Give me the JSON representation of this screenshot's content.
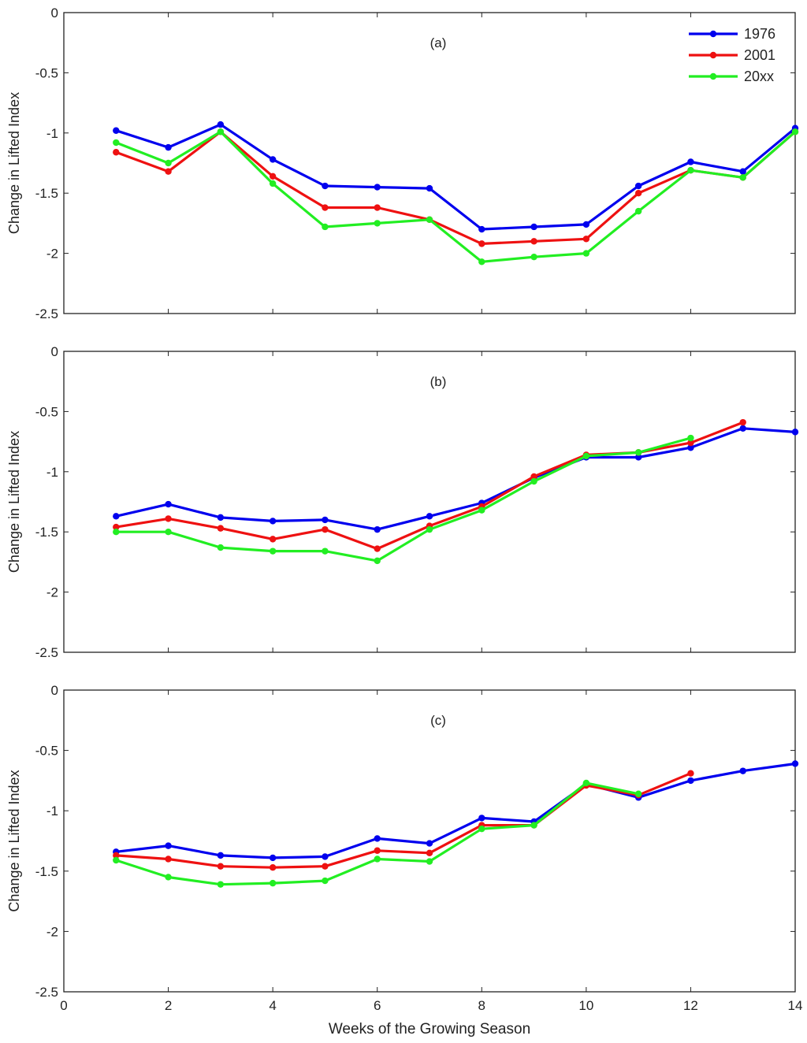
{
  "chart_data": [
    {
      "type": "line",
      "panel_label": "(a)",
      "xlabel": "",
      "ylabel": "Change in Lifted Index",
      "xlim": [
        0,
        14
      ],
      "ylim": [
        -2.5,
        0
      ],
      "xticks": [
        0,
        2,
        4,
        6,
        8,
        10,
        12,
        14
      ],
      "yticks": [
        0,
        -0.5,
        -1,
        -1.5,
        -2,
        -2.5
      ],
      "ytick_labels": [
        "0",
        "-0.5",
        "-1",
        "-1.5",
        "-2",
        "-2.5"
      ],
      "show_xtick_labels": false,
      "legend": {
        "position": "top-right",
        "entries": [
          "1976",
          "2001",
          "20xx"
        ]
      },
      "series": [
        {
          "name": "1976",
          "color": "#0000ee",
          "x": [
            1,
            2,
            3,
            4,
            5,
            6,
            7,
            8,
            9,
            10,
            11,
            12,
            13,
            14
          ],
          "y": [
            -0.98,
            -1.12,
            -0.93,
            -1.22,
            -1.44,
            -1.45,
            -1.46,
            -1.8,
            -1.78,
            -1.76,
            -1.44,
            -1.24,
            -1.32,
            -0.96
          ]
        },
        {
          "name": "2001",
          "color": "#ee1111",
          "x": [
            1,
            2,
            3,
            4,
            5,
            6,
            7,
            8,
            9,
            10,
            11,
            12,
            13,
            14
          ],
          "y": [
            -1.16,
            -1.32,
            -0.99,
            -1.36,
            -1.62,
            -1.62,
            -1.72,
            -1.92,
            -1.9,
            -1.88,
            -1.5,
            -1.31,
            -1.37,
            -0.99
          ]
        },
        {
          "name": "20xx",
          "color": "#22ee22",
          "x": [
            1,
            2,
            3,
            4,
            5,
            6,
            7,
            8,
            9,
            10,
            11,
            12,
            13,
            14
          ],
          "y": [
            -1.08,
            -1.25,
            -0.99,
            -1.42,
            -1.78,
            -1.75,
            -1.72,
            -2.07,
            -2.03,
            -2.0,
            -1.65,
            -1.31,
            -1.37,
            -0.99
          ]
        }
      ]
    },
    {
      "type": "line",
      "panel_label": "(b)",
      "xlabel": "",
      "ylabel": "Change in Lifted Index",
      "xlim": [
        0,
        14
      ],
      "ylim": [
        -2.5,
        0
      ],
      "xticks": [
        0,
        2,
        4,
        6,
        8,
        10,
        12,
        14
      ],
      "yticks": [
        0,
        -0.5,
        -1,
        -1.5,
        -2,
        -2.5
      ],
      "ytick_labels": [
        "0",
        "-0.5",
        "-1",
        "-1.5",
        "-2",
        "-2.5"
      ],
      "show_xtick_labels": false,
      "series": [
        {
          "name": "1976",
          "color": "#0000ee",
          "x": [
            1,
            2,
            3,
            4,
            5,
            6,
            7,
            8,
            9,
            10,
            11,
            12,
            13,
            14
          ],
          "y": [
            -1.37,
            -1.27,
            -1.38,
            -1.41,
            -1.4,
            -1.48,
            -1.37,
            -1.26,
            -1.05,
            -0.88,
            -0.88,
            -0.8,
            -0.64,
            -0.67
          ]
        },
        {
          "name": "2001",
          "color": "#ee1111",
          "x": [
            1,
            2,
            3,
            4,
            5,
            6,
            7,
            8,
            9,
            10,
            11,
            12,
            13
          ],
          "y": [
            -1.46,
            -1.39,
            -1.47,
            -1.56,
            -1.48,
            -1.64,
            -1.45,
            -1.29,
            -1.04,
            -0.86,
            -0.84,
            -0.76,
            -0.59
          ]
        },
        {
          "name": "20xx",
          "color": "#22ee22",
          "x": [
            1,
            2,
            3,
            4,
            5,
            6,
            7,
            8,
            9,
            10,
            11,
            12
          ],
          "y": [
            -1.5,
            -1.5,
            -1.63,
            -1.66,
            -1.66,
            -1.74,
            -1.48,
            -1.32,
            -1.08,
            -0.87,
            -0.84,
            -0.72
          ]
        }
      ]
    },
    {
      "type": "line",
      "panel_label": "(c)",
      "xlabel": "Weeks of the Growing Season",
      "ylabel": "Change in Lifted Index",
      "xlim": [
        0,
        14
      ],
      "ylim": [
        -2.5,
        0
      ],
      "xticks": [
        0,
        2,
        4,
        6,
        8,
        10,
        12,
        14
      ],
      "xtick_labels": [
        "0",
        "2",
        "4",
        "6",
        "8",
        "10",
        "12",
        "14"
      ],
      "yticks": [
        0,
        -0.5,
        -1,
        -1.5,
        -2,
        -2.5
      ],
      "ytick_labels": [
        "0",
        "-0.5",
        "-1",
        "-1.5",
        "-2",
        "-2.5"
      ],
      "show_xtick_labels": true,
      "series": [
        {
          "name": "1976",
          "color": "#0000ee",
          "x": [
            1,
            2,
            3,
            4,
            5,
            6,
            7,
            8,
            9,
            10,
            11,
            12,
            13,
            14
          ],
          "y": [
            -1.34,
            -1.29,
            -1.37,
            -1.39,
            -1.38,
            -1.23,
            -1.27,
            -1.06,
            -1.09,
            -0.78,
            -0.89,
            -0.75,
            -0.67,
            -0.61
          ]
        },
        {
          "name": "2001",
          "color": "#ee1111",
          "x": [
            1,
            2,
            3,
            4,
            5,
            6,
            7,
            8,
            9,
            10,
            11,
            12
          ],
          "y": [
            -1.37,
            -1.4,
            -1.46,
            -1.47,
            -1.46,
            -1.33,
            -1.35,
            -1.12,
            -1.12,
            -0.79,
            -0.87,
            -0.69
          ]
        },
        {
          "name": "20xx",
          "color": "#22ee22",
          "x": [
            1,
            2,
            3,
            4,
            5,
            6,
            7,
            8,
            9,
            10,
            11
          ],
          "y": [
            -1.41,
            -1.55,
            -1.61,
            -1.6,
            -1.58,
            -1.4,
            -1.42,
            -1.15,
            -1.12,
            -0.77,
            -0.86
          ]
        }
      ]
    }
  ]
}
